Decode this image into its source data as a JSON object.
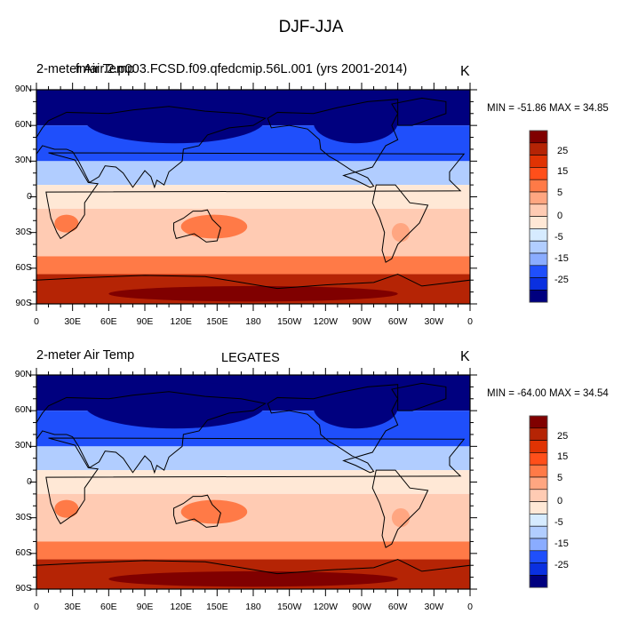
{
  "figure_title": "DJF-JJA",
  "colorbar": {
    "colors": [
      "#800000",
      "#b52405",
      "#e03303",
      "#ff4f1a",
      "#ff7a47",
      "#ffa681",
      "#ffcbb3",
      "#ffe8d6",
      "#d6ebff",
      "#b1cdff",
      "#8aacff",
      "#4a7bff",
      "#1f4ffb",
      "#0a30e0",
      "#0019a8",
      "#00007f"
    ],
    "labels": [
      "25",
      "15",
      "5",
      "0",
      "-5",
      "-15",
      "-25"
    ]
  },
  "panels": [
    {
      "left_title": "2-meter Air Temp",
      "center_title": "fmair.2.p003.FCSD.f09.qfedcmip.56L.001 (yrs 2001-2014)",
      "units": "K",
      "min_max": "MIN = -51.86 MAX =  34.85"
    },
    {
      "left_title": "2-meter Air Temp",
      "center_title": "LEGATES",
      "units": "K",
      "min_max": "MIN = -64.00 MAX =  34.54"
    }
  ],
  "axes": {
    "y_ticks": [
      "90N",
      "60N",
      "30N",
      "0",
      "30S",
      "60S",
      "90S"
    ],
    "x_ticks": [
      "0",
      "30E",
      "60E",
      "90E",
      "120E",
      "150E",
      "180",
      "150W",
      "120W",
      "90W",
      "60W",
      "30W",
      "0"
    ]
  },
  "chart_data": [
    {
      "type": "heatmap",
      "title": "2-meter Air Temp — fmair.2.p003.FCSD.f09.qfedcmip.56L.001 (yrs 2001-2014)",
      "subtitle": "DJF-JJA",
      "units": "K",
      "min": -51.86,
      "max": 34.85,
      "xlabel": "",
      "ylabel": "",
      "xlim": [
        0,
        360
      ],
      "ylim": [
        -90,
        90
      ],
      "colorbar_labels": [
        25,
        15,
        5,
        0,
        -5,
        -15,
        -25
      ],
      "zonal_bands": [
        {
          "lat": [
            60,
            90
          ],
          "value": -30
        },
        {
          "lat": [
            30,
            60
          ],
          "value": -15
        },
        {
          "lat": [
            10,
            30
          ],
          "value": -5
        },
        {
          "lat": [
            -10,
            10
          ],
          "value": 1
        },
        {
          "lat": [
            -50,
            -10
          ],
          "value": 3
        },
        {
          "lat": [
            -65,
            -50
          ],
          "value": 10
        },
        {
          "lat": [
            -90,
            -65
          ],
          "value": 25
        }
      ]
    },
    {
      "type": "heatmap",
      "title": "2-meter Air Temp — LEGATES",
      "subtitle": "DJF-JJA",
      "units": "K",
      "min": -64.0,
      "max": 34.54,
      "xlabel": "",
      "ylabel": "",
      "xlim": [
        0,
        360
      ],
      "ylim": [
        -90,
        90
      ],
      "colorbar_labels": [
        25,
        15,
        5,
        0,
        -5,
        -15,
        -25
      ],
      "zonal_bands": [
        {
          "lat": [
            60,
            90
          ],
          "value": -32
        },
        {
          "lat": [
            30,
            60
          ],
          "value": -15
        },
        {
          "lat": [
            10,
            30
          ],
          "value": -5
        },
        {
          "lat": [
            -10,
            10
          ],
          "value": 1
        },
        {
          "lat": [
            -50,
            -10
          ],
          "value": 3
        },
        {
          "lat": [
            -65,
            -50
          ],
          "value": 12
        },
        {
          "lat": [
            -90,
            -65
          ],
          "value": 25
        }
      ]
    }
  ]
}
